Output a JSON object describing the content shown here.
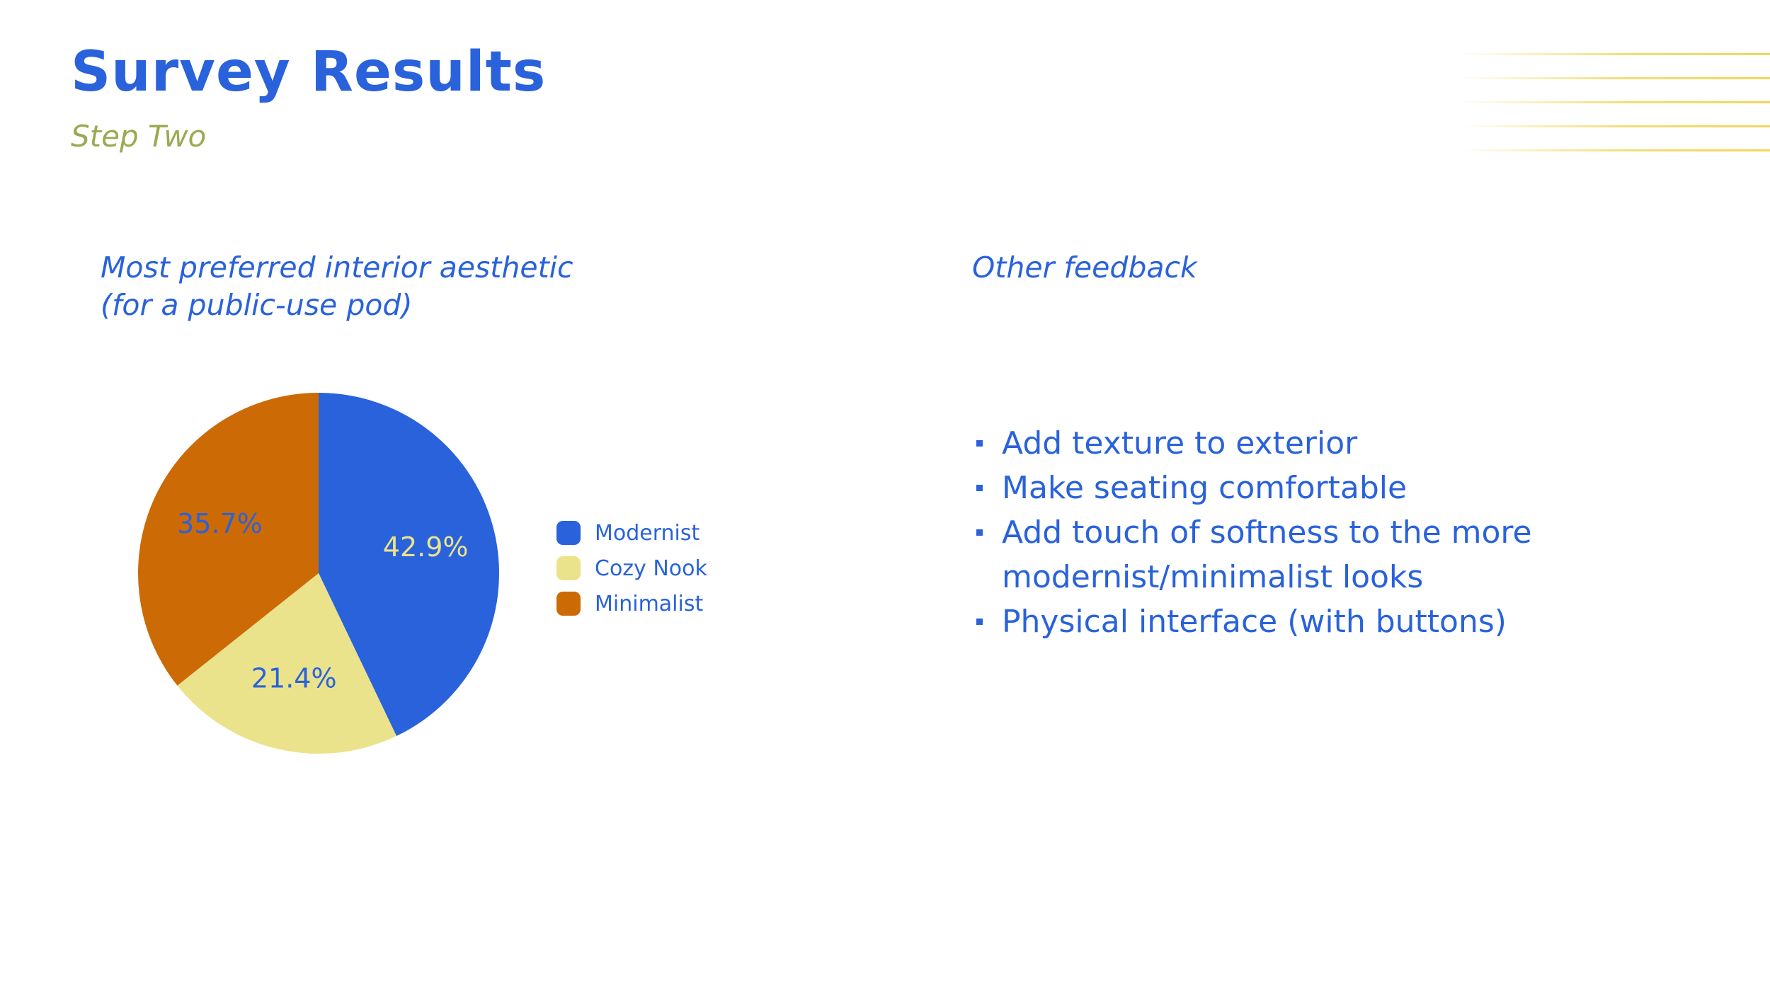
{
  "slide": {
    "title": "Survey Results",
    "subtitle": "Step Two"
  },
  "colors": {
    "accent_blue": "#2962db",
    "subtitle_green": "#9aaa52",
    "modernist": "#2962db",
    "cozy_nook": "#ebe38b",
    "minimalist": "#cc6a05",
    "deco_lines": "#f2d65a"
  },
  "chart_heading": {
    "line1": "Most preferred interior aesthetic",
    "line2": "(for a public-use pod)"
  },
  "feedback": {
    "heading": "Other feedback",
    "items": [
      "Add texture to exterior",
      "Make seating comfortable",
      "Add touch of softness to the more modernist/minimalist looks",
      "Physical interface (with buttons)"
    ]
  },
  "chart_data": {
    "type": "pie",
    "title": "Most preferred interior aesthetic (for a public-use pod)",
    "categories": [
      "Modernist",
      "Cozy Nook",
      "Minimalist"
    ],
    "values": [
      42.9,
      21.4,
      35.7
    ],
    "labels": [
      "42.9%",
      "21.4%",
      "35.7%"
    ],
    "colors": [
      "#2962db",
      "#ebe38b",
      "#cc6a05"
    ],
    "label_colors": [
      "#ebe38b",
      "#2962db",
      "#2962db"
    ],
    "start_angle_deg": 90,
    "direction": "clockwise",
    "legend_position": "right"
  }
}
